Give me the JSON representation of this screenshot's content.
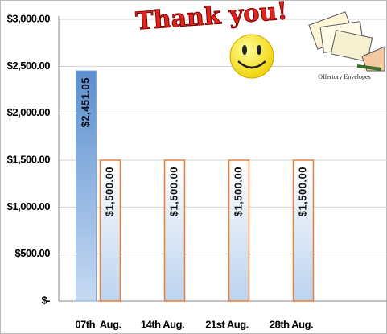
{
  "chart_data": {
    "type": "bar",
    "annotations": [
      "Thank you!",
      "Offertory Envelopes"
    ],
    "categories": [
      "07th  Aug.",
      "14th Aug.",
      "21st Aug.",
      "28th Aug."
    ],
    "series": [
      {
        "color": "#7ea6d8",
        "values": [
          2451.05,
          null,
          null,
          null
        ],
        "value_labels": [
          "$2,451.05",
          null,
          null,
          null
        ]
      },
      {
        "color": "#ed7d31",
        "values": [
          1500,
          1500,
          1500,
          1500
        ],
        "value_labels": [
          "$1,500.00",
          "$1,500.00",
          "$1,500.00",
          "$1,500.00"
        ]
      }
    ],
    "ylim": [
      0,
      3000
    ],
    "yticks": [
      {
        "value": 0,
        "label": "$-"
      },
      {
        "value": 500,
        "label": "$500.00"
      },
      {
        "value": 1000,
        "label": "$1,000.00"
      },
      {
        "value": 1500,
        "label": "$1,500.00"
      },
      {
        "value": 2000,
        "label": "$2,000.00"
      },
      {
        "value": 2500,
        "label": "$2,500.00"
      },
      {
        "value": 3000,
        "label": "$3,000.00"
      }
    ],
    "grid": true
  }
}
